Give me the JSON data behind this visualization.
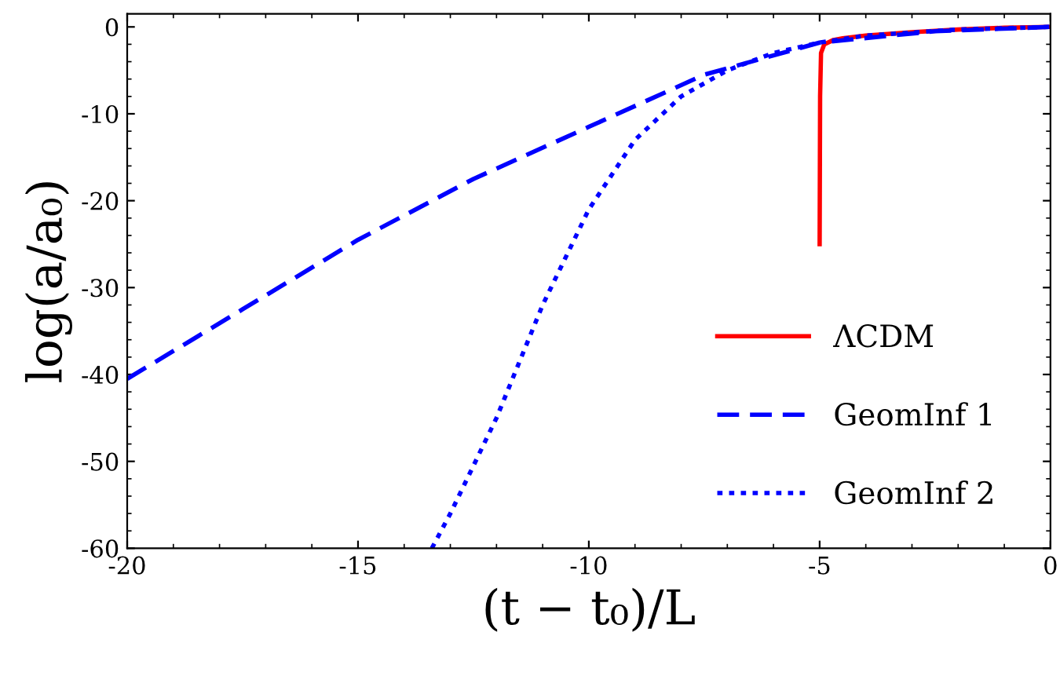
{
  "chart_data": {
    "type": "line",
    "xlabel": "(t − t₀)/L",
    "ylabel": "log(a/a₀)",
    "xlim": [
      -20,
      0
    ],
    "ylim": [
      -60,
      1.5
    ],
    "xticks": [
      -20,
      -15,
      -10,
      -5,
      0
    ],
    "yticks": [
      -60,
      -50,
      -40,
      -30,
      -20,
      -10,
      0
    ],
    "grid": false,
    "legend": "bottom right",
    "series": [
      {
        "name": "ΛCDM",
        "color": "#ff0000",
        "line_style": "solid",
        "x": [
          -5,
          -4.99,
          -4.97,
          -4.9,
          -4.7,
          -4.5,
          -4,
          -3,
          -2,
          -1,
          0
        ],
        "values": [
          -25,
          -8,
          -3,
          -2,
          -1.5,
          -1.3,
          -1,
          -0.6,
          -0.3,
          -0.1,
          0
        ]
      },
      {
        "name": "GeomInf 1",
        "color": "#0000ff",
        "line_style": "dashed",
        "x": [
          -20,
          -17.5,
          -15,
          -12.5,
          -10,
          -7.5,
          -5,
          -2.5,
          0
        ],
        "values": [
          -40.5,
          -32.5,
          -24.5,
          -17.5,
          -11.5,
          -5.5,
          -1.8,
          -0.5,
          0
        ]
      },
      {
        "name": "GeomInf 2",
        "color": "#0000ff",
        "line_style": "dotted",
        "x": [
          -13.4,
          -13,
          -12,
          -11,
          -10,
          -9,
          -8,
          -7,
          -6,
          -5,
          -4,
          -2,
          0
        ],
        "values": [
          -60,
          -56,
          -45,
          -32,
          -21,
          -13,
          -8,
          -5,
          -3,
          -1.8,
          -1,
          -0.3,
          0
        ]
      }
    ]
  }
}
